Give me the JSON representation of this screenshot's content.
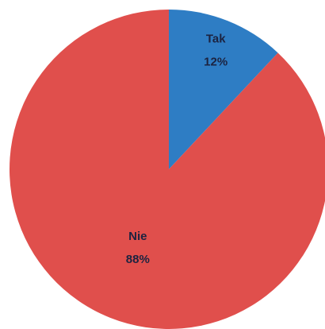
{
  "chart_data": {
    "type": "pie",
    "categories": [
      "Tak",
      "Nie"
    ],
    "values": [
      12,
      88
    ],
    "value_labels": [
      "12%",
      "88%"
    ],
    "colors": [
      "#2e7dc4",
      "#e04f4c"
    ],
    "start_angle": 0,
    "direction": "clockwise"
  }
}
